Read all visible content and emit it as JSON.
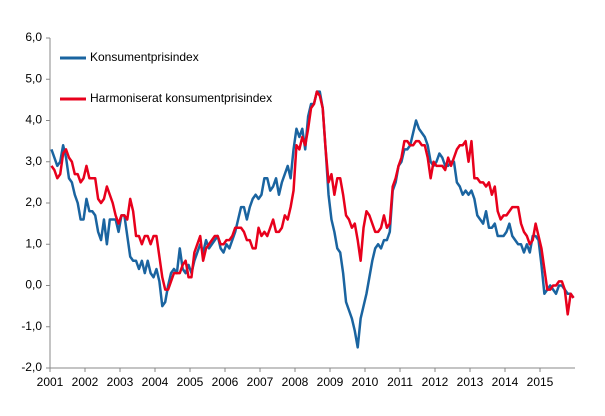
{
  "chart_data": {
    "type": "line",
    "categories": [
      "2001",
      null,
      null,
      null,
      null,
      null,
      null,
      null,
      null,
      null,
      null,
      null,
      "2002",
      null,
      null,
      null,
      null,
      null,
      null,
      null,
      null,
      null,
      null,
      null,
      "2003",
      null,
      null,
      null,
      null,
      null,
      null,
      null,
      null,
      null,
      null,
      null,
      "2004",
      null,
      null,
      null,
      null,
      null,
      null,
      null,
      null,
      null,
      null,
      null,
      "2005",
      null,
      null,
      null,
      null,
      null,
      null,
      null,
      null,
      null,
      null,
      null,
      "2006",
      null,
      null,
      null,
      null,
      null,
      null,
      null,
      null,
      null,
      null,
      null,
      "2007",
      null,
      null,
      null,
      null,
      null,
      null,
      null,
      null,
      null,
      null,
      null,
      "2008",
      null,
      null,
      null,
      null,
      null,
      null,
      null,
      null,
      null,
      null,
      null,
      "2009",
      null,
      null,
      null,
      null,
      null,
      null,
      null,
      null,
      null,
      null,
      null,
      "2010",
      null,
      null,
      null,
      null,
      null,
      null,
      null,
      null,
      null,
      null,
      null,
      "2011",
      null,
      null,
      null,
      null,
      null,
      null,
      null,
      null,
      null,
      null,
      null,
      "2012",
      null,
      null,
      null,
      null,
      null,
      null,
      null,
      null,
      null,
      null,
      null,
      "2013",
      null,
      null,
      null,
      null,
      null,
      null,
      null,
      null,
      null,
      null,
      null,
      "2014",
      null,
      null,
      null,
      null,
      null,
      null,
      null,
      null,
      null,
      null,
      null,
      "2015",
      null,
      null,
      null,
      null,
      null,
      null,
      null,
      null,
      null,
      null,
      null
    ],
    "series": [
      {
        "name": "Konsumentprisindex",
        "color": "#1a64a0",
        "values": [
          3.3,
          3.1,
          2.9,
          3.0,
          3.4,
          3.1,
          2.6,
          2.5,
          2.2,
          2.0,
          1.6,
          1.6,
          2.1,
          1.8,
          1.8,
          1.7,
          1.3,
          1.1,
          1.6,
          1.0,
          1.6,
          1.6,
          1.6,
          1.3,
          1.7,
          1.7,
          1.2,
          0.7,
          0.6,
          0.6,
          0.4,
          0.6,
          0.3,
          0.6,
          0.3,
          0.2,
          0.4,
          0.1,
          -0.5,
          -0.4,
          0.0,
          0.3,
          0.4,
          0.3,
          0.9,
          0.4,
          0.3,
          0.5,
          0.3,
          0.6,
          0.8,
          1.0,
          0.8,
          1.1,
          0.9,
          1.0,
          1.1,
          1.2,
          0.9,
          0.8,
          1.0,
          0.9,
          1.1,
          1.3,
          1.6,
          1.9,
          1.9,
          1.6,
          1.9,
          2.1,
          2.2,
          2.1,
          2.2,
          2.6,
          2.6,
          2.3,
          2.4,
          2.6,
          2.2,
          2.5,
          2.7,
          2.9,
          2.6,
          3.3,
          3.8,
          3.6,
          3.8,
          3.3,
          4.1,
          4.4,
          4.4,
          4.7,
          4.7,
          4.3,
          3.3,
          2.2,
          1.6,
          1.3,
          0.9,
          0.8,
          0.3,
          -0.4,
          -0.6,
          -0.8,
          -1.1,
          -1.5,
          -0.8,
          -0.5,
          -0.2,
          0.2,
          0.6,
          0.9,
          1.0,
          0.9,
          1.1,
          1.1,
          1.3,
          2.3,
          2.5,
          2.9,
          3.0,
          3.3,
          3.3,
          3.4,
          3.7,
          4.0,
          3.8,
          3.7,
          3.6,
          3.4,
          3.0,
          2.9,
          3.0,
          3.2,
          3.1,
          2.9,
          2.9,
          3.0,
          3.0,
          2.5,
          2.4,
          2.2,
          2.3,
          2.2,
          2.3,
          2.1,
          1.7,
          1.6,
          1.5,
          1.8,
          1.4,
          1.4,
          1.5,
          1.2,
          1.2,
          1.2,
          1.3,
          1.5,
          1.2,
          1.1,
          1.0,
          1.0,
          0.8,
          1.0,
          0.8,
          1.2,
          1.2,
          1.1,
          0.5,
          -0.2,
          -0.1,
          0.0,
          -0.1,
          -0.2,
          0.0,
          0.0,
          -0.1,
          -0.2,
          -0.2,
          -0.3
        ]
      },
      {
        "name": "Harmoniserat konsumentprisindex",
        "color": "#e8001c",
        "values": [
          2.9,
          2.8,
          2.6,
          2.7,
          3.2,
          3.3,
          3.1,
          3.0,
          2.7,
          2.7,
          2.5,
          2.6,
          2.9,
          2.6,
          2.6,
          2.6,
          2.1,
          2.0,
          2.1,
          2.4,
          2.2,
          2.0,
          1.7,
          1.5,
          1.7,
          1.7,
          1.6,
          2.1,
          1.8,
          1.2,
          1.2,
          1.0,
          1.2,
          1.2,
          1.0,
          1.2,
          1.2,
          0.7,
          0.2,
          -0.1,
          -0.1,
          0.1,
          0.3,
          0.3,
          0.3,
          0.5,
          0.6,
          0.2,
          0.2,
          0.8,
          1.0,
          1.2,
          0.6,
          0.9,
          1.0,
          1.1,
          1.2,
          1.2,
          1.0,
          1.0,
          1.1,
          1.1,
          1.2,
          1.4,
          1.4,
          1.4,
          1.3,
          1.1,
          1.1,
          0.9,
          0.9,
          1.4,
          1.2,
          1.3,
          1.2,
          1.4,
          1.6,
          1.3,
          1.3,
          1.4,
          1.7,
          1.6,
          1.9,
          2.3,
          3.4,
          3.3,
          3.6,
          3.4,
          3.8,
          4.3,
          4.4,
          4.7,
          4.6,
          4.3,
          3.3,
          2.5,
          2.7,
          2.2,
          2.6,
          2.6,
          2.2,
          1.7,
          1.6,
          1.4,
          1.5,
          1.1,
          0.6,
          1.4,
          1.8,
          1.7,
          1.5,
          1.3,
          1.3,
          1.4,
          1.7,
          1.4,
          1.5,
          2.4,
          2.6,
          2.9,
          3.1,
          3.5,
          3.5,
          3.4,
          3.4,
          3.5,
          3.5,
          3.4,
          3.4,
          3.1,
          2.6,
          3.0,
          2.9,
          2.9,
          2.9,
          2.8,
          3.1,
          2.9,
          3.1,
          3.3,
          3.4,
          3.4,
          3.5,
          3.0,
          3.5,
          2.6,
          2.6,
          2.5,
          2.5,
          2.4,
          2.5,
          2.2,
          2.4,
          1.8,
          1.6,
          1.7,
          1.7,
          1.8,
          1.9,
          1.9,
          1.9,
          1.5,
          1.3,
          1.2,
          1.0,
          1.1,
          1.5,
          1.2,
          0.9,
          0.4,
          -0.1,
          -0.1,
          0.0,
          0.0,
          0.1,
          0.1,
          -0.1,
          -0.7,
          -0.2,
          -0.3
        ]
      }
    ],
    "ylim": [
      -2,
      6
    ],
    "yticks": [
      {
        "value": -2,
        "label": "-2,0"
      },
      {
        "value": -1,
        "label": "-1,0"
      },
      {
        "value": 0,
        "label": "0,0"
      },
      {
        "value": 1,
        "label": "1,0"
      },
      {
        "value": 2,
        "label": "2,0"
      },
      {
        "value": 3,
        "label": "3,0"
      },
      {
        "value": 4,
        "label": "4,0"
      },
      {
        "value": 5,
        "label": "5,0"
      },
      {
        "value": 6,
        "label": "6,0"
      }
    ],
    "legend": "upper-left"
  }
}
